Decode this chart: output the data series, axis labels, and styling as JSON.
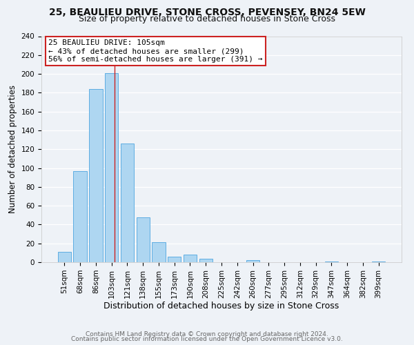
{
  "title1": "25, BEAULIEU DRIVE, STONE CROSS, PEVENSEY, BN24 5EW",
  "title2": "Size of property relative to detached houses in Stone Cross",
  "xlabel": "Distribution of detached houses by size in Stone Cross",
  "ylabel": "Number of detached properties",
  "bar_labels": [
    "51sqm",
    "68sqm",
    "86sqm",
    "103sqm",
    "121sqm",
    "138sqm",
    "155sqm",
    "173sqm",
    "190sqm",
    "208sqm",
    "225sqm",
    "242sqm",
    "260sqm",
    "277sqm",
    "295sqm",
    "312sqm",
    "329sqm",
    "347sqm",
    "364sqm",
    "382sqm",
    "399sqm"
  ],
  "bar_values": [
    11,
    97,
    184,
    201,
    126,
    48,
    21,
    6,
    8,
    4,
    0,
    0,
    2,
    0,
    0,
    0,
    0,
    1,
    0,
    0,
    1
  ],
  "bar_color": "#aed6f1",
  "bar_edge_color": "#5dade2",
  "ylim": [
    0,
    240
  ],
  "yticks": [
    0,
    20,
    40,
    60,
    80,
    100,
    120,
    140,
    160,
    180,
    200,
    220,
    240
  ],
  "annotation_title": "25 BEAULIEU DRIVE: 105sqm",
  "annotation_line1": "← 43% of detached houses are smaller (299)",
  "annotation_line2": "56% of semi-detached houses are larger (391) →",
  "annotation_box_color": "#ffffff",
  "annotation_box_edge": "#cc2222",
  "vline_x_index": 3.17,
  "footer1": "Contains HM Land Registry data © Crown copyright and database right 2024.",
  "footer2": "Contains public sector information licensed under the Open Government Licence v3.0.",
  "background_color": "#eef2f7",
  "grid_color": "#ffffff",
  "title1_fontsize": 10,
  "title2_fontsize": 9,
  "xlabel_fontsize": 9,
  "ylabel_fontsize": 8.5,
  "tick_fontsize": 7.5,
  "footer_fontsize": 6.5
}
